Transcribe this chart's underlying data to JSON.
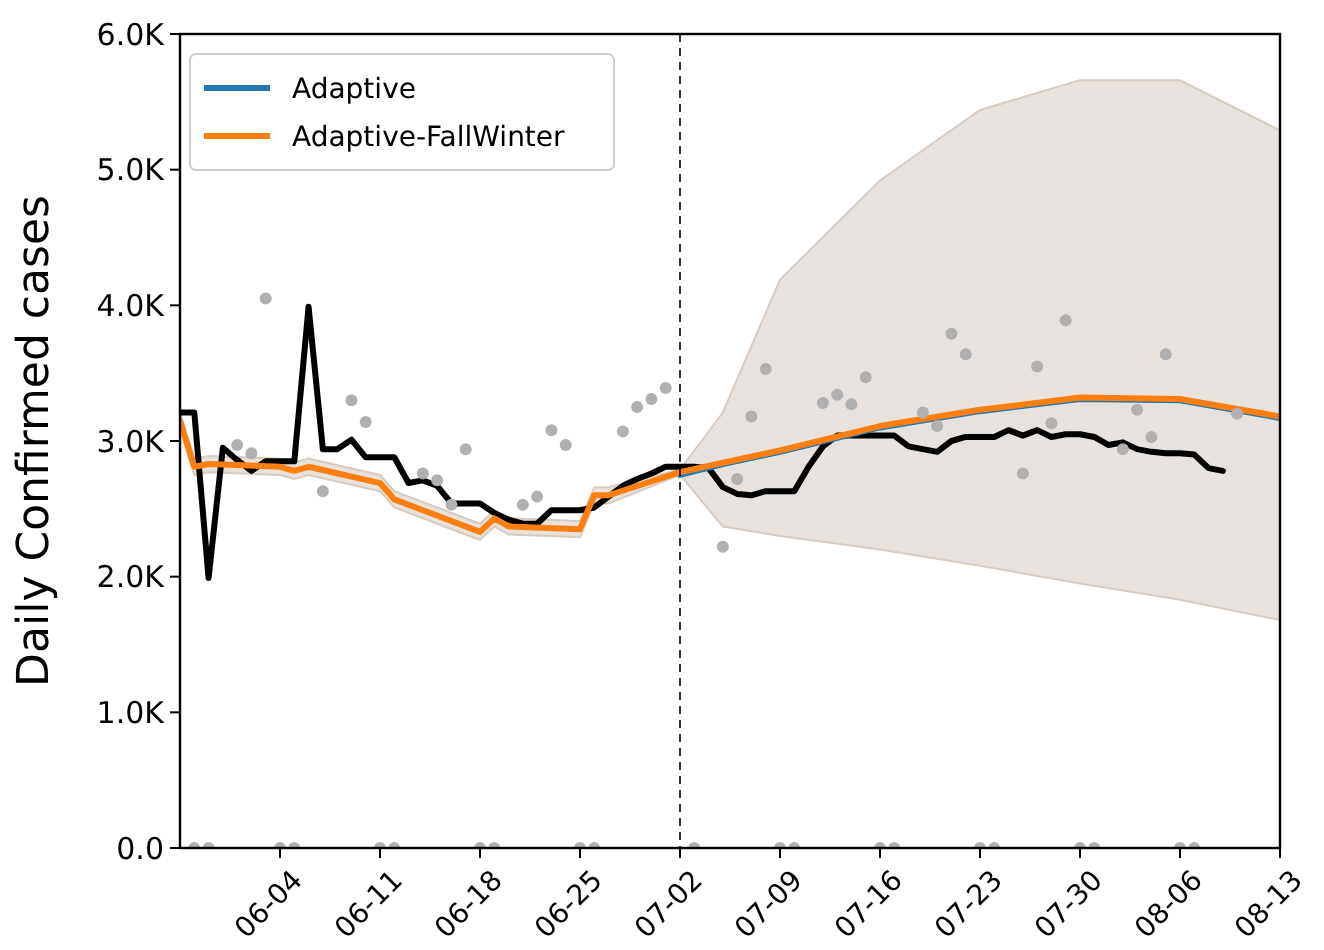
{
  "chart_data": {
    "type": "line",
    "ylabel": "Daily Confirmed cases",
    "legend": "top left",
    "grid": false,
    "xlim": [
      "--05-28",
      "--08-13"
    ],
    "xticks": [
      {
        "value": "--06-04",
        "label": "06-04"
      },
      {
        "value": "--06-11",
        "label": "06-11"
      },
      {
        "value": "--06-18",
        "label": "06-18"
      },
      {
        "value": "--06-25",
        "label": "06-25"
      },
      {
        "value": "--07-02",
        "label": "07-02"
      },
      {
        "value": "--07-09",
        "label": "07-09"
      },
      {
        "value": "--07-16",
        "label": "07-16"
      },
      {
        "value": "--07-23",
        "label": "07-23"
      },
      {
        "value": "--07-30",
        "label": "07-30"
      },
      {
        "value": "--08-06",
        "label": "08-06"
      },
      {
        "value": "--08-13",
        "label": "08-13"
      }
    ],
    "ylim": [
      0,
      6000
    ],
    "yticks": [
      {
        "value": 0,
        "label": "0.0"
      },
      {
        "value": 1000,
        "label": "1.0K"
      },
      {
        "value": 2000,
        "label": "2.0K"
      },
      {
        "value": 3000,
        "label": "3.0K"
      },
      {
        "value": 4000,
        "label": "4.0K"
      },
      {
        "value": 5000,
        "label": "5.0K"
      },
      {
        "value": 6000,
        "label": "6.0K"
      }
    ],
    "ref_lines": [
      {
        "axis": "x",
        "value": "--07-02",
        "color": "#000000",
        "line_style": "dashed"
      }
    ],
    "series": [
      {
        "type": "scatter",
        "color": "#b0b0b0",
        "marker": "circle",
        "x": [
          "--05-29",
          "--05-30",
          "--06-01",
          "--06-02",
          "--06-03",
          "--06-04",
          "--06-05",
          "--06-07",
          "--06-09",
          "--06-10",
          "--06-11",
          "--06-12",
          "--06-14",
          "--06-15",
          "--06-16",
          "--06-17",
          "--06-18",
          "--06-19",
          "--06-21",
          "--06-22",
          "--06-23",
          "--06-24",
          "--06-25",
          "--06-26",
          "--06-28",
          "--06-29",
          "--06-30",
          "--07-01",
          "--07-03",
          "--07-05",
          "--07-06",
          "--07-07",
          "--07-08",
          "--07-09",
          "--07-10",
          "--07-12",
          "--07-13",
          "--07-14",
          "--07-15",
          "--07-16",
          "--07-17",
          "--07-19",
          "--07-20",
          "--07-21",
          "--07-22",
          "--07-23",
          "--07-24",
          "--07-26",
          "--07-27",
          "--07-28",
          "--07-29",
          "--07-30",
          "--07-31",
          "--08-02",
          "--08-03",
          "--08-04",
          "--08-05",
          "--08-06",
          "--08-07",
          "--08-10"
        ],
        "values": [
          0,
          0,
          2970,
          2910,
          4050,
          0,
          0,
          2630,
          3300,
          3140,
          0,
          0,
          2760,
          2710,
          2530,
          2940,
          0,
          0,
          2530,
          2590,
          3080,
          2970,
          0,
          0,
          3070,
          3250,
          3310,
          3390,
          0,
          2220,
          2720,
          3180,
          3530,
          0,
          0,
          3280,
          3340,
          3270,
          3470,
          0,
          0,
          3210,
          3110,
          3790,
          3640,
          0,
          0,
          2760,
          3550,
          3130,
          3890,
          0,
          0,
          2940,
          3230,
          3030,
          3640,
          0,
          0,
          3200
        ]
      },
      {
        "color": "#000000",
        "x": [
          "--05-28",
          "--05-29",
          "--05-30",
          "--05-31",
          "--06-01",
          "--06-02",
          "--06-03",
          "--06-04",
          "--06-05",
          "--06-06",
          "--06-07",
          "--06-08",
          "--06-09",
          "--06-10",
          "--06-11",
          "--06-12",
          "--06-13",
          "--06-14",
          "--06-15",
          "--06-16",
          "--06-17",
          "--06-18",
          "--06-19",
          "--06-20",
          "--06-21",
          "--06-22",
          "--06-23",
          "--06-24",
          "--06-25",
          "--06-26",
          "--06-27",
          "--06-28",
          "--06-29",
          "--06-30",
          "--07-01",
          "--07-02",
          "--07-03",
          "--07-04",
          "--07-05",
          "--07-06",
          "--07-07",
          "--07-08",
          "--07-09",
          "--07-10",
          "--07-11",
          "--07-12",
          "--07-13",
          "--07-14",
          "--07-15",
          "--07-16",
          "--07-17",
          "--07-18",
          "--07-19",
          "--07-20",
          "--07-21",
          "--07-22",
          "--07-23",
          "--07-24",
          "--07-25",
          "--07-26",
          "--07-27",
          "--07-28",
          "--07-29",
          "--07-30",
          "--07-31",
          "--08-01",
          "--08-02",
          "--08-03",
          "--08-04",
          "--08-05",
          "--08-06",
          "--08-07",
          "--08-08",
          "--08-09"
        ],
        "values": [
          3210,
          3210,
          1990,
          2950,
          2860,
          2780,
          2850,
          2850,
          2850,
          3990,
          2940,
          2940,
          3010,
          2880,
          2880,
          2880,
          2690,
          2710,
          2670,
          2540,
          2540,
          2540,
          2470,
          2420,
          2390,
          2390,
          2490,
          2490,
          2490,
          2510,
          2590,
          2670,
          2720,
          2760,
          2810,
          2810,
          2810,
          2800,
          2660,
          2610,
          2600,
          2630,
          2630,
          2630,
          2810,
          2960,
          3040,
          3040,
          3040,
          3040,
          3040,
          2960,
          2940,
          2920,
          3000,
          3030,
          3030,
          3030,
          3080,
          3040,
          3080,
          3030,
          3050,
          3050,
          3030,
          2970,
          2990,
          2940,
          2920,
          2910,
          2910,
          2900,
          2800,
          2780
        ]
      },
      {
        "name": "Adaptive",
        "color": "#1f77b4",
        "x": [
          "--07-02",
          "--07-05",
          "--07-09",
          "--07-16",
          "--07-23",
          "--07-30",
          "--08-06",
          "--08-13"
        ],
        "values": [
          2750,
          2830,
          2920,
          3100,
          3220,
          3310,
          3300,
          3170
        ]
      },
      {
        "name": "Adaptive-FallWinter",
        "color": "#ff7f0e",
        "x": [
          "--05-28",
          "--05-29",
          "--05-30",
          "--06-04",
          "--06-05",
          "--06-06",
          "--06-11",
          "--06-12",
          "--06-18",
          "--06-19",
          "--06-20",
          "--06-25",
          "--06-26",
          "--06-27",
          "--07-02",
          "--07-05",
          "--07-09",
          "--07-16",
          "--07-23",
          "--07-30",
          "--08-06",
          "--08-13"
        ],
        "values": [
          3150,
          2810,
          2830,
          2810,
          2780,
          2810,
          2690,
          2570,
          2330,
          2430,
          2370,
          2350,
          2600,
          2600,
          2770,
          2840,
          2930,
          3110,
          3230,
          3320,
          3310,
          3180
        ],
        "lower": [
          3090,
          2750,
          2770,
          2750,
          2720,
          2750,
          2630,
          2510,
          2270,
          2370,
          2310,
          2290,
          2540,
          2540,
          2750,
          2370,
          2300,
          2200,
          2080,
          1950,
          1830,
          1680
        ],
        "upper": [
          3210,
          2870,
          2890,
          2870,
          2840,
          2870,
          2750,
          2630,
          2390,
          2490,
          2430,
          2410,
          2660,
          2660,
          2790,
          3210,
          4190,
          4920,
          5440,
          5660,
          5660,
          5290
        ]
      }
    ]
  }
}
